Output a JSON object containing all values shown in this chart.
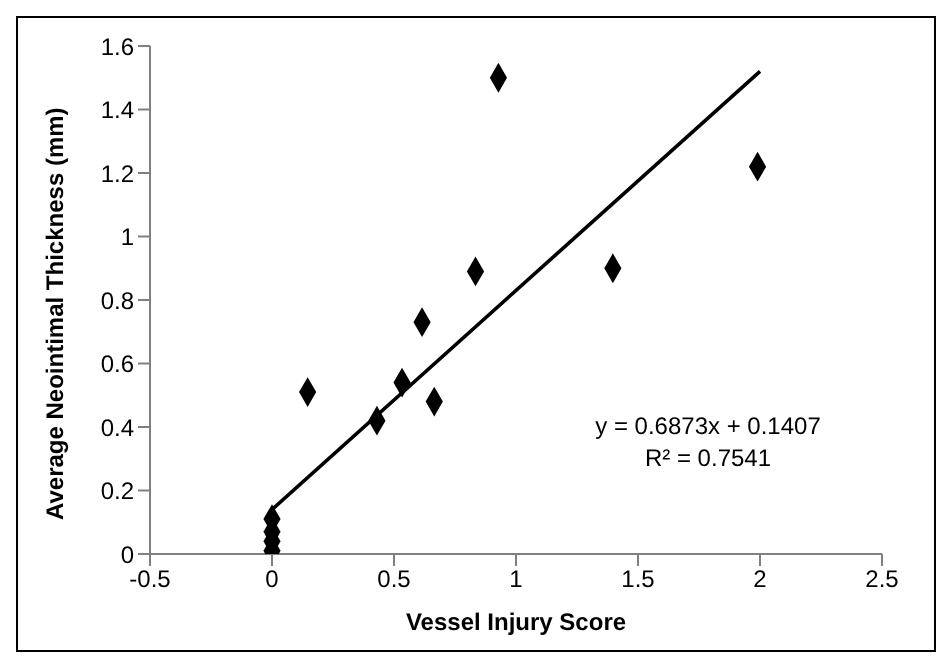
{
  "chart_data": {
    "type": "scatter",
    "xlabel": "Vessel Injury Score",
    "ylabel": "Average Neointimal Thickness (mm)",
    "xlim": [
      -0.5,
      2.5
    ],
    "xticks": [
      -0.5,
      0,
      0.5,
      1,
      1.5,
      2,
      2.5
    ],
    "ylim": [
      0,
      1.6
    ],
    "yticks": [
      0,
      0.2,
      0.4,
      0.6,
      0.8,
      1,
      1.2,
      1.4,
      1.6
    ],
    "grid": false,
    "marker": "diamond",
    "series": [
      {
        "color": "#000000",
        "x": [
          0,
          0,
          0,
          0,
          0.146,
          0.43,
          0.533,
          0.615,
          0.665,
          0.834,
          0.928,
          1.397,
          1.99
        ],
        "values": [
          0.11,
          0.07,
          0.04,
          0.01,
          0.51,
          0.42,
          0.54,
          0.73,
          0.48,
          0.89,
          1.5,
          0.9,
          1.22
        ]
      },
      {
        "type": "line",
        "color": "#000000",
        "line_style": "solid",
        "marker": "none",
        "x": [
          0,
          2
        ],
        "values": [
          0.14,
          1.52
        ]
      }
    ],
    "annotations": [
      "y = 0.6873x + 0.1407",
      "R² = 0.7541"
    ]
  }
}
